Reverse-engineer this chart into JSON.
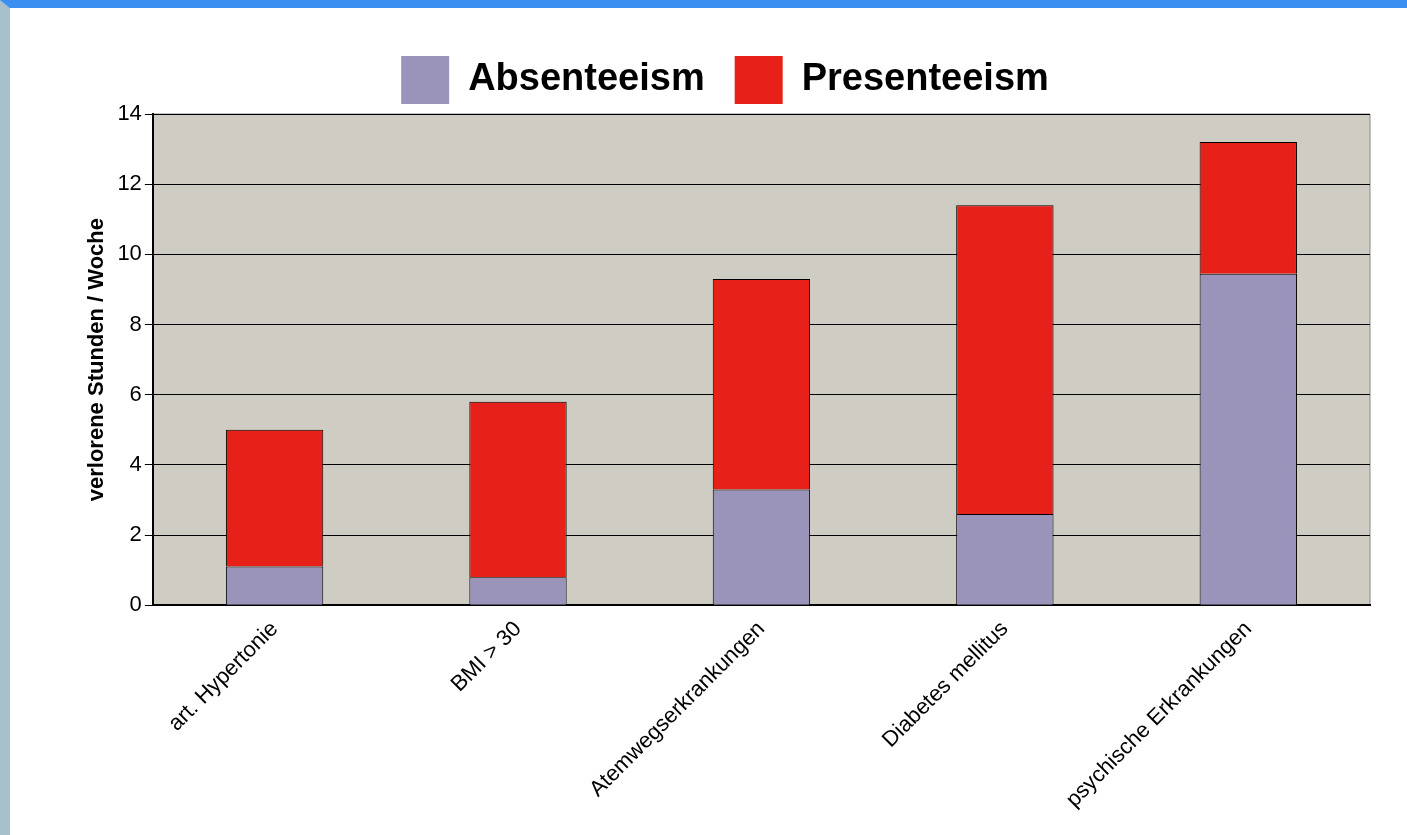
{
  "chart_data": {
    "type": "bar",
    "stacked": true,
    "ylabel": "verlorene Stunden / Woche",
    "categories": [
      "art. Hypertonie",
      "BMI > 30",
      "Atemwegserkrankungen",
      "Diabetes mellitus",
      "psychische Erkrankungen"
    ],
    "series": [
      {
        "name": "Absenteeism",
        "color": "#9a94bb",
        "values": [
          1.1,
          0.8,
          3.3,
          2.6,
          9.45
        ]
      },
      {
        "name": "Presenteeism",
        "color": "#e8201a",
        "values": [
          3.9,
          5.0,
          6.0,
          8.8,
          3.75
        ]
      }
    ],
    "ylim": [
      0,
      14
    ],
    "yticks": [
      0,
      2,
      4,
      6,
      8,
      10,
      12,
      14
    ],
    "grid": "y",
    "legend": "top"
  }
}
